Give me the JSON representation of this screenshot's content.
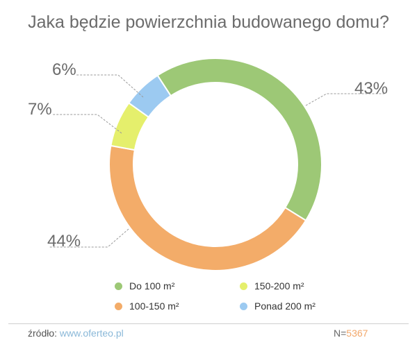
{
  "title": "Jaka będzie powierzchnia budowanego domu?",
  "chart_data": {
    "type": "pie",
    "donut": true,
    "title": "Jaka będzie powierzchnia budowanego domu?",
    "slices": [
      {
        "label": "Do 100 m²",
        "value": 43,
        "display": "43%",
        "color": "#9dc876"
      },
      {
        "label": "100-150 m²",
        "value": 44,
        "display": "44%",
        "color": "#f3ac69"
      },
      {
        "label": "150-200 m²",
        "value": 7,
        "display": "7%",
        "color": "#e5ef6c"
      },
      {
        "label": "Ponad 200 m²",
        "value": 6,
        "display": "6%",
        "color": "#9ccaf1"
      }
    ],
    "legend_position": "bottom"
  },
  "footer": {
    "source_label": "źródło:",
    "source_link": "www.oferteo.pl",
    "n_label": "N=",
    "n_value": "5367"
  }
}
